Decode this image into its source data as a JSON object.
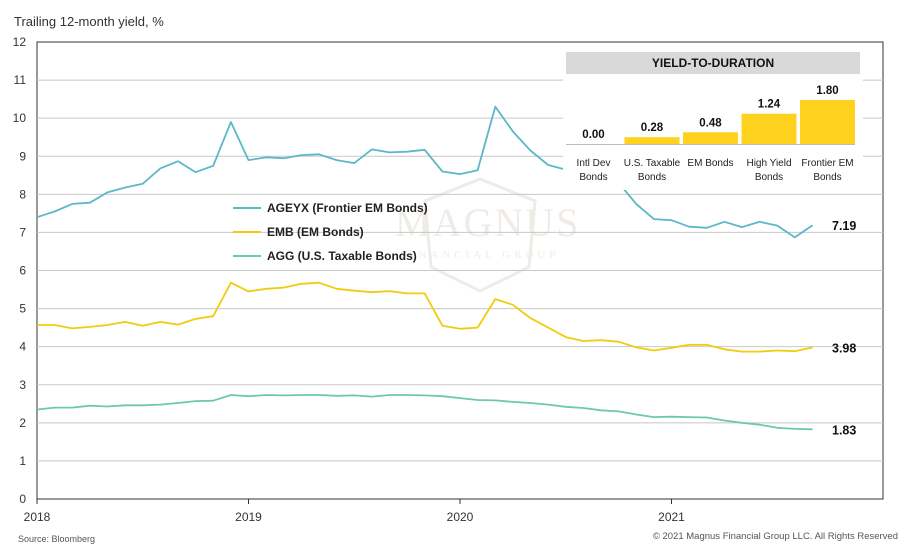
{
  "header": {
    "y_axis_title": "Trailing 12-month yield, %"
  },
  "footer": {
    "source": "Source: Bloomberg",
    "copyright": "© 2021 Magnus Financial Group LLC. All Rights Reserved"
  },
  "watermark": {
    "text": "MAGNUS",
    "subtext": "FINANCIAL GROUP"
  },
  "chart_data": [
    {
      "type": "line",
      "title": "",
      "ylabel": "Trailing 12-month yield, %",
      "xlabel": "",
      "ylim": [
        0,
        12
      ],
      "yticks": [
        "0",
        "1",
        "2",
        "3",
        "4",
        "5",
        "6",
        "7",
        "8",
        "9",
        "10",
        "11",
        "12"
      ],
      "xlim": [
        2018.0,
        2022.0
      ],
      "xticks": [
        {
          "label": "2018",
          "value": 2018.0
        },
        {
          "label": "2019",
          "value": 2019.0
        },
        {
          "label": "2020",
          "value": 2020.0
        },
        {
          "label": "2021",
          "value": 2021.0
        }
      ],
      "x": [
        2018.0,
        2018.083,
        2018.167,
        2018.25,
        2018.333,
        2018.417,
        2018.5,
        2018.583,
        2018.667,
        2018.75,
        2018.833,
        2018.917,
        2019.0,
        2019.083,
        2019.167,
        2019.25,
        2019.333,
        2019.417,
        2019.5,
        2019.583,
        2019.667,
        2019.75,
        2019.833,
        2019.917,
        2020.0,
        2020.083,
        2020.167,
        2020.25,
        2020.333,
        2020.417,
        2020.5,
        2020.583,
        2020.667,
        2020.75,
        2020.833,
        2020.917,
        2021.0,
        2021.083,
        2021.167,
        2021.25,
        2021.333,
        2021.417,
        2021.5,
        2021.583,
        2021.667
      ],
      "series": [
        {
          "name": "AGEYX (Frontier EM Bonds)",
          "color": "#5bb8c8",
          "end_label": "7.19",
          "values": [
            7.4,
            7.55,
            7.75,
            7.78,
            8.05,
            8.18,
            8.28,
            8.68,
            8.87,
            8.58,
            8.75,
            9.9,
            8.9,
            8.97,
            8.95,
            9.03,
            9.05,
            8.9,
            8.82,
            9.18,
            9.1,
            9.12,
            9.17,
            8.6,
            8.53,
            8.63,
            10.3,
            9.65,
            9.15,
            8.77,
            8.65,
            8.45,
            8.4,
            8.3,
            7.75,
            7.35,
            7.32,
            7.15,
            7.12,
            7.28,
            7.14,
            7.28,
            7.18,
            6.87,
            7.19
          ]
        },
        {
          "name": "EMB (EM Bonds)",
          "color": "#f2cc0c",
          "end_label": "3.98",
          "values": [
            4.57,
            4.57,
            4.48,
            4.52,
            4.57,
            4.65,
            4.55,
            4.65,
            4.58,
            4.73,
            4.8,
            5.68,
            5.45,
            5.52,
            5.55,
            5.65,
            5.68,
            5.52,
            5.47,
            5.43,
            5.46,
            5.4,
            5.4,
            4.55,
            4.47,
            4.5,
            5.25,
            5.1,
            4.75,
            4.5,
            4.25,
            4.15,
            4.17,
            4.13,
            3.98,
            3.9,
            3.97,
            4.05,
            4.05,
            3.93,
            3.87,
            3.87,
            3.9,
            3.88,
            3.98
          ]
        },
        {
          "name": "AGG (U.S. Taxable Bonds)",
          "color": "#6fc9a8",
          "end_label": "1.83",
          "values": [
            2.35,
            2.4,
            2.4,
            2.45,
            2.43,
            2.46,
            2.46,
            2.48,
            2.52,
            2.57,
            2.58,
            2.73,
            2.7,
            2.73,
            2.72,
            2.73,
            2.73,
            2.71,
            2.72,
            2.69,
            2.73,
            2.73,
            2.72,
            2.7,
            2.65,
            2.6,
            2.59,
            2.55,
            2.52,
            2.48,
            2.42,
            2.39,
            2.33,
            2.3,
            2.22,
            2.15,
            2.16,
            2.15,
            2.14,
            2.06,
            2.0,
            1.95,
            1.87,
            1.84,
            1.83
          ]
        }
      ]
    },
    {
      "type": "bar",
      "title": "YIELD-TO-DURATION",
      "categories": [
        [
          "Intl Dev",
          "Bonds"
        ],
        [
          "U.S. Taxable",
          "Bonds"
        ],
        [
          "EM Bonds"
        ],
        [
          "High Yield",
          "Bonds"
        ],
        [
          "Frontier EM",
          "Bonds"
        ]
      ],
      "values": [
        0.0,
        0.28,
        0.48,
        1.24,
        1.8
      ],
      "value_labels": [
        "0.00",
        "0.28",
        "0.48",
        "1.24",
        "1.80"
      ],
      "color": "#ffd21f",
      "ylim": [
        0,
        1.8
      ]
    }
  ]
}
